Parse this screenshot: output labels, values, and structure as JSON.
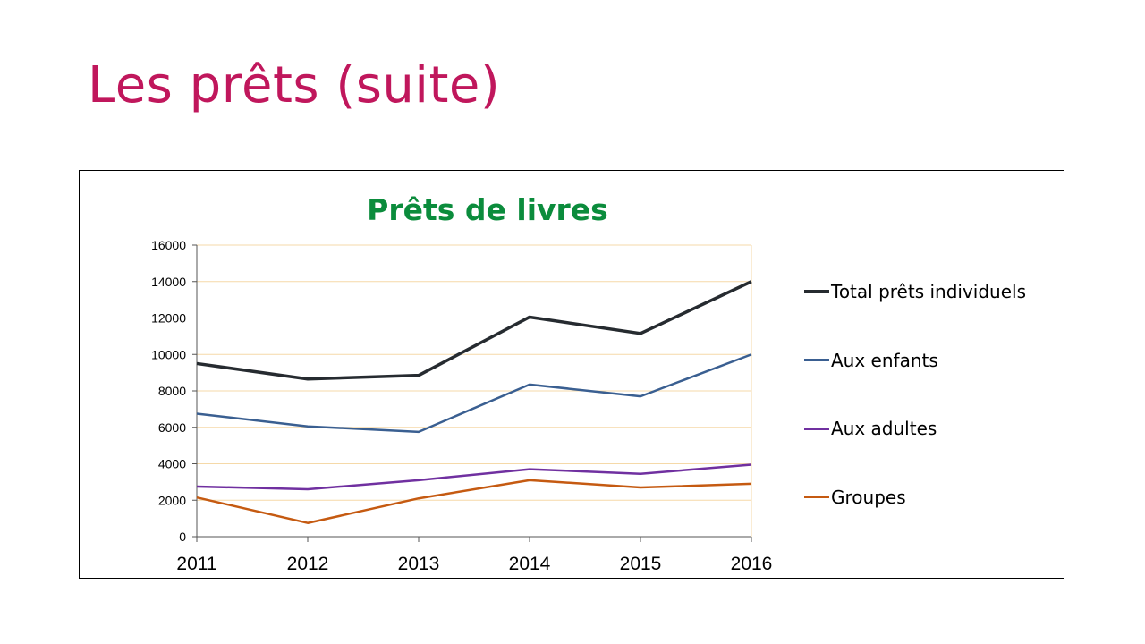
{
  "slide": {
    "title": "Les prêts (suite)",
    "title_color": "#c0175c"
  },
  "chart_data": {
    "type": "line",
    "title": "Prêts de livres",
    "title_color": "#0b8c3c",
    "categories": [
      "2011",
      "2012",
      "2013",
      "2014",
      "2015",
      "2016"
    ],
    "series": [
      {
        "name": "Total prêts individuels",
        "color": "#262b30",
        "values": [
          9500,
          8650,
          8850,
          12050,
          11150,
          14000
        ]
      },
      {
        "name": "Aux enfants",
        "color": "#3a5f91",
        "values": [
          6750,
          6050,
          5750,
          8350,
          7700,
          10000
        ]
      },
      {
        "name": "Aux adultes",
        "color": "#7030a0",
        "values": [
          2750,
          2600,
          3100,
          3700,
          3450,
          3950
        ]
      },
      {
        "name": "Groupes",
        "color": "#c55a11",
        "values": [
          2150,
          750,
          2100,
          3100,
          2700,
          2900
        ]
      }
    ],
    "ylim": [
      0,
      16000
    ],
    "yticks": [
      "0",
      "2000",
      "4000",
      "6000",
      "8000",
      "10000",
      "12000",
      "14000",
      "16000"
    ],
    "xlabel": "",
    "ylabel": "",
    "grid": true,
    "grid_color": "#f5d9a8",
    "legend_position": "right"
  }
}
